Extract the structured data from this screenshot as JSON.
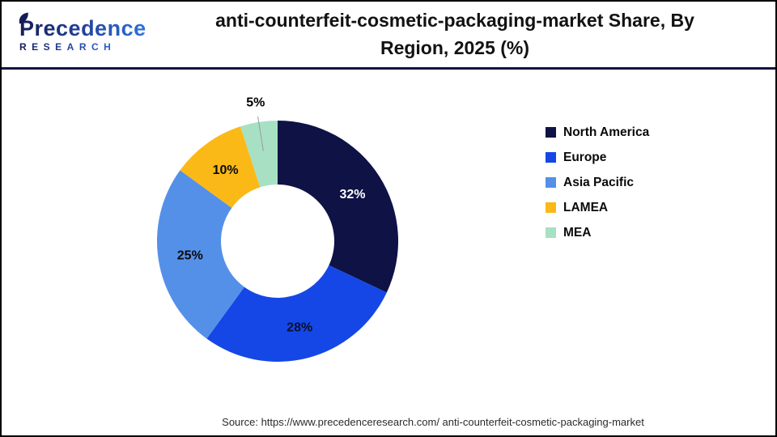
{
  "header": {
    "logo_line1": "Precedence",
    "logo_line2": "RESEARCH",
    "title_line1": "anti-counterfeit-cosmetic-packaging-market Share, By",
    "title_line2": "Region, 2025 (%)"
  },
  "chart_data": {
    "type": "pie",
    "subtype": "donut",
    "title": "anti-counterfeit-cosmetic-packaging-market Share, By Region, 2025 (%)",
    "categories": [
      "North America",
      "Europe",
      "Asia Pacific",
      "LAMEA",
      "MEA"
    ],
    "values": [
      32,
      28,
      25,
      10,
      5
    ],
    "unit": "%",
    "colors": [
      "#0e1245",
      "#1547e6",
      "#5590e8",
      "#fbb917",
      "#a7e0c3"
    ],
    "slice_label_colors": [
      "#ffffff",
      "#0a102e",
      "#0a0a0a",
      "#0a0a0a",
      "#000000"
    ],
    "labels_outside": [
      "MEA"
    ],
    "leader_line_color": "#9b9b9b",
    "start_angle_deg": 0,
    "direction": "clockwise",
    "legend_position": "right",
    "hole_ratio": 0.47
  },
  "footer": {
    "source": "Source: https://www.precedenceresearch.com/ anti-counterfeit-cosmetic-packaging-market"
  }
}
